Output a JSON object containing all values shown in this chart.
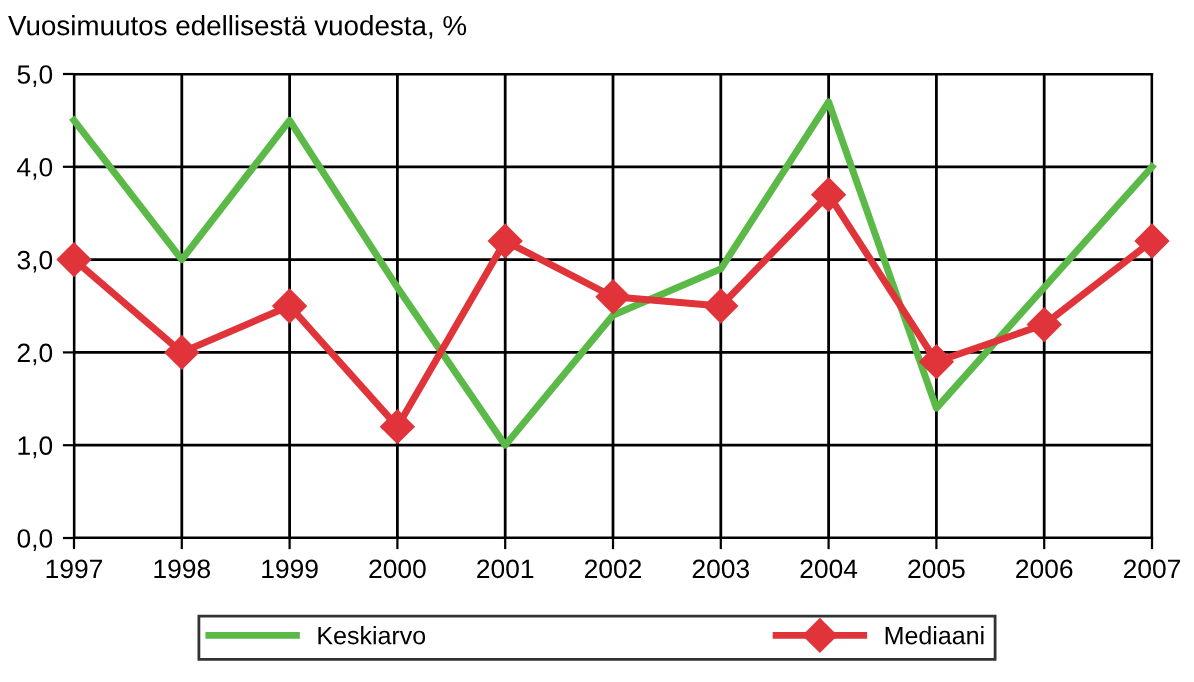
{
  "chart_data": {
    "type": "line",
    "title": "Vuosimuutos edellisestä vuodesta, %",
    "categories": [
      "1997",
      "1998",
      "1999",
      "2000",
      "2001",
      "2002",
      "2003",
      "2004",
      "2005",
      "2006",
      "2007"
    ],
    "series": [
      {
        "name": "Keskiarvo",
        "color": "#5ab947",
        "marker": "none",
        "values": [
          4.5,
          3.0,
          4.5,
          2.7,
          1.0,
          2.4,
          2.9,
          4.7,
          1.4,
          2.7,
          4.0
        ]
      },
      {
        "name": "Mediaani",
        "color": "#e0343a",
        "marker": "diamond",
        "values": [
          3.0,
          2.0,
          2.5,
          1.2,
          3.2,
          2.6,
          2.5,
          3.7,
          1.9,
          2.3,
          3.2
        ]
      }
    ],
    "ylim": [
      0,
      5
    ],
    "yticks": [
      {
        "value": 0,
        "label": "0,0"
      },
      {
        "value": 1,
        "label": "1,0"
      },
      {
        "value": 2,
        "label": "2,0"
      },
      {
        "value": 3,
        "label": "3,0"
      },
      {
        "value": 4,
        "label": "4,0"
      },
      {
        "value": 5,
        "label": "5,0"
      }
    ],
    "grid": true,
    "legend": "bottom",
    "line_style": "solid"
  }
}
